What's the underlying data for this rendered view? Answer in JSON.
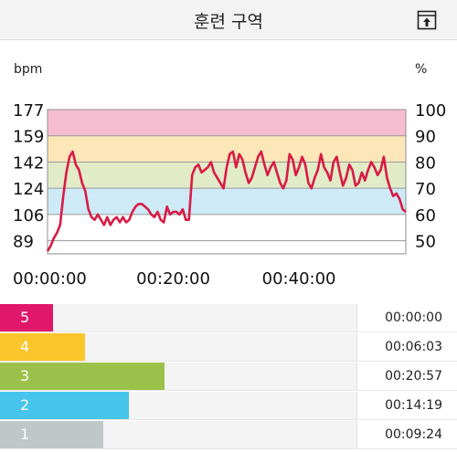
{
  "header": {
    "title": "훈련 구역",
    "export_icon": "export-up-arrow-icon"
  },
  "chart_data": {
    "type": "line",
    "ylabel_left": "bpm",
    "ylabel_right": "%",
    "y_ticks_left": [
      "177",
      "159",
      "142",
      "124",
      "106",
      "89"
    ],
    "y_ticks_right": [
      "100",
      "90",
      "80",
      "70",
      "60",
      "50"
    ],
    "x_ticks": [
      "00:00:00",
      "00:20:00",
      "00:40:00"
    ],
    "y_range_pct": [
      45,
      100
    ],
    "x_range_min": [
      0,
      57
    ],
    "zones_pct": [
      {
        "zone": 5,
        "from": 90,
        "to": 100,
        "color": "#f6bccf"
      },
      {
        "zone": 4,
        "from": 80,
        "to": 90,
        "color": "#fde7b9"
      },
      {
        "zone": 3,
        "from": 70,
        "to": 80,
        "color": "#e2ebc7"
      },
      {
        "zone": 2,
        "from": 60,
        "to": 70,
        "color": "#cdeaf6"
      }
    ],
    "line_color": "#d81b45",
    "series": [
      {
        "x": [
          0,
          0.5,
          1,
          1.5,
          2,
          2.5,
          3,
          3.5,
          4,
          4.5,
          5,
          5.5,
          6,
          6.5,
          7,
          7.5,
          8,
          8.5,
          9,
          9.5,
          10,
          10.5,
          11,
          11.5,
          12,
          12.5,
          13,
          13.5,
          14,
          14.5,
          15,
          15.5,
          16,
          16.5,
          17,
          17.5,
          18,
          18.5,
          19,
          19.5,
          20,
          20.5,
          21,
          21.5,
          22,
          22.5,
          23,
          23.5,
          24,
          24.5,
          25,
          25.5,
          26,
          26.5,
          27,
          27.5,
          28,
          28.5,
          29,
          29.5,
          30,
          30.5,
          31,
          31.5,
          32,
          32.5,
          33,
          33.5,
          34,
          34.5,
          35,
          35.5,
          36,
          36.5,
          37,
          37.5,
          38,
          38.5,
          39,
          39.5,
          40,
          40.5,
          41,
          41.5,
          42,
          42.5,
          43,
          43.5,
          44,
          44.5,
          45,
          45.5,
          46,
          46.5,
          47,
          47.5,
          48,
          48.5,
          49,
          49.5,
          50,
          50.5,
          51,
          51.5,
          52,
          52.5,
          53,
          53.5,
          54,
          54.5,
          55,
          55.5,
          56,
          56.5,
          57
        ],
        "y": [
          46,
          48,
          51,
          53,
          56,
          67,
          76,
          82,
          84,
          79,
          77,
          72,
          69,
          62,
          59,
          58,
          60,
          58,
          56,
          59,
          56,
          58,
          59,
          57,
          59,
          57,
          58,
          61,
          63,
          64,
          64,
          63,
          62,
          60,
          59,
          61,
          58,
          57,
          63,
          60,
          61,
          61,
          60,
          62,
          58,
          58,
          75,
          78,
          79,
          76,
          77,
          78,
          80,
          76,
          74,
          72,
          70,
          78,
          83,
          84,
          78,
          83,
          81,
          76,
          72,
          74,
          78,
          82,
          84,
          79,
          75,
          78,
          80,
          76,
          72,
          70,
          73,
          83,
          81,
          75,
          78,
          82,
          79,
          72,
          70,
          74,
          77,
          83,
          78,
          76,
          73,
          80,
          82,
          76,
          71,
          74,
          79,
          77,
          71,
          72,
          76,
          73,
          77,
          80,
          78,
          75,
          77,
          82,
          74,
          70,
          67,
          68,
          66,
          62,
          61
        ]
      }
    ]
  },
  "zones": [
    {
      "number": "5",
      "time": "00:00:00",
      "color": "#e0176a",
      "value": 0.0
    },
    {
      "number": "4",
      "time": "00:06:03",
      "color": "#fbc52c",
      "value": 6.05
    },
    {
      "number": "3",
      "time": "00:20:57",
      "color": "#9bc14a",
      "value": 20.95
    },
    {
      "number": "2",
      "time": "00:14:19",
      "color": "#46c4ec",
      "value": 14.32
    },
    {
      "number": "1",
      "time": "00:09:24",
      "color": "#bfc8c7",
      "value": 9.4
    }
  ]
}
